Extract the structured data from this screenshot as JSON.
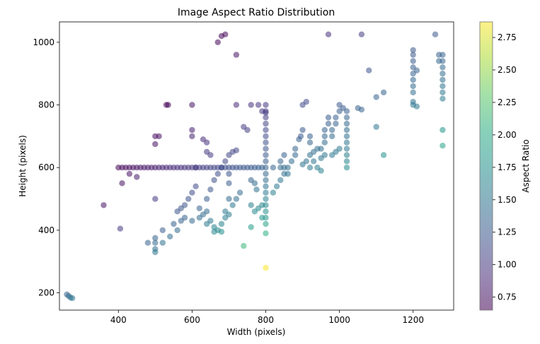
{
  "chart_data": {
    "type": "scatter",
    "title": "Image Aspect Ratio Distribution",
    "xlabel": "Width (pixels)",
    "ylabel": "Height (pixels)",
    "xlim": [
      240,
      1310
    ],
    "ylim": [
      145,
      1065
    ],
    "xticks": [
      400,
      600,
      800,
      1000,
      1200
    ],
    "yticks": [
      200,
      400,
      600,
      800,
      1000
    ],
    "grid": false,
    "colorbar": {
      "label": "Aspect Ratio",
      "range": [
        0.65,
        2.87
      ],
      "ticks": [
        0.75,
        1.0,
        1.25,
        1.5,
        1.75,
        2.0,
        2.25,
        2.5,
        2.75
      ],
      "tick_labels": [
        "0.75",
        "1.00",
        "1.25",
        "1.50",
        "1.75",
        "2.00",
        "2.25",
        "2.50",
        "2.75"
      ],
      "colormap": "viridis"
    },
    "points": [
      [
        260,
        195
      ],
      [
        265,
        190
      ],
      [
        270,
        185
      ],
      [
        275,
        183
      ],
      [
        360,
        480
      ],
      [
        400,
        600
      ],
      [
        405,
        405
      ],
      [
        410,
        550
      ],
      [
        410,
        600
      ],
      [
        420,
        600
      ],
      [
        430,
        600
      ],
      [
        440,
        600
      ],
      [
        450,
        600
      ],
      [
        460,
        600
      ],
      [
        470,
        600
      ],
      [
        480,
        600
      ],
      [
        490,
        600
      ],
      [
        500,
        600
      ],
      [
        510,
        600
      ],
      [
        520,
        600
      ],
      [
        530,
        600
      ],
      [
        540,
        600
      ],
      [
        550,
        600
      ],
      [
        560,
        600
      ],
      [
        570,
        600
      ],
      [
        580,
        600
      ],
      [
        590,
        600
      ],
      [
        600,
        600
      ],
      [
        610,
        600
      ],
      [
        620,
        600
      ],
      [
        630,
        600
      ],
      [
        640,
        600
      ],
      [
        650,
        600
      ],
      [
        660,
        600
      ],
      [
        670,
        600
      ],
      [
        680,
        600
      ],
      [
        690,
        600
      ],
      [
        700,
        600
      ],
      [
        710,
        600
      ],
      [
        720,
        600
      ],
      [
        730,
        600
      ],
      [
        740,
        600
      ],
      [
        750,
        600
      ],
      [
        760,
        600
      ],
      [
        770,
        600
      ],
      [
        780,
        600
      ],
      [
        790,
        600
      ],
      [
        800,
        600
      ],
      [
        820,
        600
      ],
      [
        840,
        600
      ],
      [
        430,
        580
      ],
      [
        450,
        570
      ],
      [
        500,
        700
      ],
      [
        510,
        700
      ],
      [
        500,
        675
      ],
      [
        500,
        500
      ],
      [
        500,
        375
      ],
      [
        500,
        360
      ],
      [
        500,
        340
      ],
      [
        500,
        330
      ],
      [
        480,
        360
      ],
      [
        520,
        400
      ],
      [
        530,
        800
      ],
      [
        535,
        800
      ],
      [
        550,
        420
      ],
      [
        560,
        460
      ],
      [
        570,
        470
      ],
      [
        580,
        480
      ],
      [
        590,
        500
      ],
      [
        600,
        520
      ],
      [
        610,
        540
      ],
      [
        520,
        360
      ],
      [
        540,
        380
      ],
      [
        560,
        400
      ],
      [
        570,
        430
      ],
      [
        580,
        440
      ],
      [
        600,
        720
      ],
      [
        600,
        800
      ],
      [
        600,
        700
      ],
      [
        610,
        600
      ],
      [
        620,
        470
      ],
      [
        630,
        450
      ],
      [
        640,
        500
      ],
      [
        650,
        530
      ],
      [
        660,
        560
      ],
      [
        670,
        580
      ],
      [
        680,
        600
      ],
      [
        690,
        620
      ],
      [
        700,
        640
      ],
      [
        710,
        650
      ],
      [
        720,
        655
      ],
      [
        630,
        690
      ],
      [
        640,
        680
      ],
      [
        640,
        650
      ],
      [
        650,
        640
      ],
      [
        670,
        1000
      ],
      [
        680,
        1020
      ],
      [
        690,
        1025
      ],
      [
        720,
        960
      ],
      [
        640,
        460
      ],
      [
        650,
        430
      ],
      [
        660,
        410
      ],
      [
        670,
        400
      ],
      [
        680,
        420
      ],
      [
        690,
        440
      ],
      [
        700,
        450
      ],
      [
        710,
        480
      ],
      [
        720,
        500
      ],
      [
        730,
        520
      ],
      [
        600,
        430
      ],
      [
        620,
        440
      ],
      [
        640,
        420
      ],
      [
        660,
        395
      ],
      [
        680,
        395
      ],
      [
        690,
        460
      ],
      [
        700,
        500
      ],
      [
        700,
        550
      ],
      [
        700,
        580
      ],
      [
        720,
        800
      ],
      [
        740,
        730
      ],
      [
        750,
        720
      ],
      [
        760,
        800
      ],
      [
        760,
        560
      ],
      [
        770,
        550
      ],
      [
        775,
        530
      ],
      [
        780,
        800
      ],
      [
        790,
        780
      ],
      [
        760,
        480
      ],
      [
        770,
        460
      ],
      [
        780,
        470
      ],
      [
        790,
        480
      ],
      [
        790,
        440
      ],
      [
        800,
        420
      ],
      [
        800,
        390
      ],
      [
        800,
        280
      ],
      [
        740,
        350
      ],
      [
        760,
        410
      ],
      [
        800,
        800
      ],
      [
        800,
        780
      ],
      [
        800,
        760
      ],
      [
        800,
        740
      ],
      [
        800,
        720
      ],
      [
        800,
        700
      ],
      [
        800,
        680
      ],
      [
        800,
        660
      ],
      [
        800,
        640
      ],
      [
        800,
        620
      ],
      [
        800,
        580
      ],
      [
        800,
        560
      ],
      [
        800,
        540
      ],
      [
        800,
        520
      ],
      [
        800,
        500
      ],
      [
        800,
        480
      ],
      [
        800,
        460
      ],
      [
        800,
        440
      ],
      [
        800,
        775
      ],
      [
        820,
        520
      ],
      [
        830,
        540
      ],
      [
        840,
        560
      ],
      [
        840,
        620
      ],
      [
        850,
        640
      ],
      [
        850,
        600
      ],
      [
        860,
        580
      ],
      [
        880,
        660
      ],
      [
        890,
        690
      ],
      [
        895,
        700
      ],
      [
        900,
        720
      ],
      [
        900,
        800
      ],
      [
        910,
        810
      ],
      [
        920,
        700
      ],
      [
        920,
        680
      ],
      [
        920,
        640
      ],
      [
        930,
        620
      ],
      [
        940,
        600
      ],
      [
        950,
        590
      ],
      [
        950,
        630
      ],
      [
        960,
        680
      ],
      [
        960,
        700
      ],
      [
        960,
        720
      ],
      [
        970,
        740
      ],
      [
        970,
        760
      ],
      [
        980,
        700
      ],
      [
        980,
        720
      ],
      [
        990,
        740
      ],
      [
        990,
        760
      ],
      [
        1000,
        780
      ],
      [
        1000,
        800
      ],
      [
        1010,
        790
      ],
      [
        1020,
        780
      ],
      [
        1020,
        760
      ],
      [
        1020,
        740
      ],
      [
        1020,
        720
      ],
      [
        1020,
        700
      ],
      [
        1020,
        680
      ],
      [
        1020,
        660
      ],
      [
        1020,
        640
      ],
      [
        1020,
        620
      ],
      [
        1020,
        600
      ],
      [
        1000,
        660
      ],
      [
        990,
        650
      ],
      [
        980,
        640
      ],
      [
        960,
        640
      ],
      [
        950,
        660
      ],
      [
        940,
        660
      ],
      [
        930,
        650
      ],
      [
        920,
        600
      ],
      [
        900,
        610
      ],
      [
        910,
        620
      ],
      [
        880,
        640
      ],
      [
        870,
        620
      ],
      [
        860,
        600
      ],
      [
        850,
        580
      ],
      [
        970,
        1025
      ],
      [
        1060,
        1025
      ],
      [
        1050,
        790
      ],
      [
        1060,
        785
      ],
      [
        1080,
        910
      ],
      [
        1100,
        730
      ],
      [
        1100,
        825
      ],
      [
        1120,
        640
      ],
      [
        1120,
        840
      ],
      [
        1200,
        960
      ],
      [
        1200,
        975
      ],
      [
        1200,
        940
      ],
      [
        1200,
        920
      ],
      [
        1200,
        900
      ],
      [
        1200,
        880
      ],
      [
        1200,
        860
      ],
      [
        1200,
        840
      ],
      [
        1200,
        810
      ],
      [
        1200,
        800
      ],
      [
        1210,
        795
      ],
      [
        1210,
        910
      ],
      [
        1260,
        1025
      ],
      [
        1270,
        960
      ],
      [
        1270,
        940
      ],
      [
        1280,
        960
      ],
      [
        1280,
        940
      ],
      [
        1280,
        920
      ],
      [
        1280,
        900
      ],
      [
        1280,
        880
      ],
      [
        1280,
        860
      ],
      [
        1280,
        840
      ],
      [
        1280,
        820
      ],
      [
        1280,
        720
      ],
      [
        1280,
        670
      ]
    ]
  }
}
